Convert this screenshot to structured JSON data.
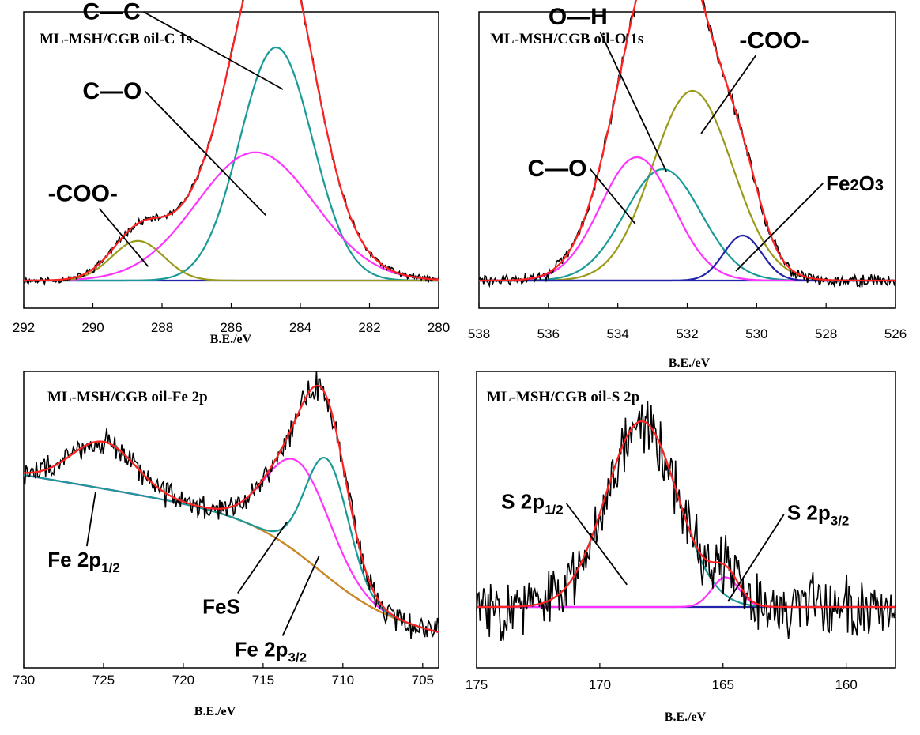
{
  "chart_data": [
    {
      "type": "line",
      "title": "ML-MSH/CGB oil-C 1s",
      "xlabel": "B.E./eV",
      "xlim": [
        292,
        280
      ],
      "xticks": [
        292,
        290,
        288,
        286,
        284,
        282,
        280
      ],
      "series": [
        {
          "name": "C—C",
          "color": "#1a9a96",
          "peak": 284.7,
          "height": 1.0,
          "width": 1.05
        },
        {
          "name": "C—O",
          "color": "#ff33ff",
          "peak": 285.3,
          "height": 0.55,
          "width": 1.7
        },
        {
          "name": "-COO-",
          "color": "#9a9a1a",
          "peak": 288.7,
          "height": 0.17,
          "width": 0.75
        },
        {
          "name": "fit",
          "color": "#ff2222"
        },
        {
          "name": "raw",
          "color": "#000000"
        }
      ],
      "annotations": [
        {
          "text": "C—C",
          "label_x": 290.3,
          "label_y": 1.12,
          "target_x": 284.5,
          "target_y": 0.82
        },
        {
          "text": "C—O",
          "label_x": 290.3,
          "label_y": 0.78,
          "target_x": 285.0,
          "target_y": 0.28
        },
        {
          "text": "-COO-",
          "label_x": 291.3,
          "label_y": 0.34,
          "target_x": 288.4,
          "target_y": 0.06
        }
      ]
    },
    {
      "type": "line",
      "title": "ML-MSH/CGB oil-O 1s",
      "xlabel": "B.E./eV",
      "xlim": [
        538,
        526
      ],
      "xticks": [
        538,
        536,
        534,
        532,
        530,
        528,
        526
      ],
      "series": [
        {
          "name": "-COO-",
          "color": "#9a9a1a",
          "peak": 531.85,
          "height": 0.8,
          "width": 1.15
        },
        {
          "name": "O—H",
          "color": "#1a9a96",
          "peak": 532.7,
          "height": 0.47,
          "width": 1.1
        },
        {
          "name": "C—O",
          "color": "#ff33ff",
          "peak": 533.45,
          "height": 0.52,
          "width": 1.05
        },
        {
          "name": "Fe2O3",
          "color": "#2222aa",
          "peak": 530.4,
          "height": 0.19,
          "width": 0.55
        },
        {
          "name": "fit",
          "color": "#ff2222"
        },
        {
          "name": "raw",
          "color": "#000000"
        }
      ],
      "annotations": [
        {
          "text": "O—H",
          "label_x": 536.0,
          "label_y": 1.08,
          "target_x": 532.6,
          "target_y": 0.46
        },
        {
          "text": "-COO-",
          "label_x": 530.5,
          "label_y": 0.98,
          "target_x": 531.6,
          "target_y": 0.62
        },
        {
          "text": "C—O",
          "label_x": 536.6,
          "label_y": 0.44,
          "target_x": 533.5,
          "target_y": 0.24
        },
        {
          "text": "Fe2O3",
          "label_x": 528.0,
          "label_y": 0.38,
          "target_x": 530.6,
          "target_y": 0.04
        }
      ]
    },
    {
      "type": "line",
      "title": "ML-MSH/CGB oil-Fe 2p",
      "xlabel": "B.E./eV",
      "xlim": [
        730,
        704
      ],
      "xticks": [
        730,
        725,
        720,
        715,
        710,
        705
      ],
      "series": [
        {
          "name": "Fe 2p1/2",
          "color": "#d28a1a",
          "peak": 725.0,
          "height": 0.22,
          "width": 2.0
        },
        {
          "name": "Fe 2p3/2",
          "color": "#ff33ff",
          "peak": 712.8,
          "height": 0.43,
          "width": 2.0
        },
        {
          "name": "FeS",
          "color": "#1a9a96",
          "peak": 711.0,
          "height": 0.55,
          "width": 1.35
        },
        {
          "name": "background",
          "color": "#2222aa"
        },
        {
          "name": "fit",
          "color": "#ff2222"
        },
        {
          "name": "raw",
          "color": "#000000"
        }
      ],
      "annotations": [
        {
          "text": "Fe 2p",
          "sub": "1/2",
          "label_x": 728.5,
          "label_y": 0.27,
          "target_x": 725.5,
          "target_y": 0.62
        },
        {
          "text": "FeS",
          "label_x": 718.8,
          "label_y": 0.05,
          "target_x": 713.5,
          "target_y": 0.48
        },
        {
          "text": "Fe 2p",
          "sub": "3/2",
          "label_x": 716.8,
          "label_y": -0.15,
          "target_x": 711.5,
          "target_y": 0.32
        }
      ]
    },
    {
      "type": "line",
      "title": "ML-MSH/CGB oil-S 2p",
      "xlabel": "B.E./eV",
      "xlim": [
        175,
        158
      ],
      "xticks": [
        175,
        170,
        165,
        160
      ],
      "series": [
        {
          "name": "S 2p1/2",
          "color": "#1a9a96",
          "peak": 168.3,
          "height": 1.0,
          "width": 1.45
        },
        {
          "name": "S 2p3/2",
          "color": "#ff33ff",
          "peak": 164.9,
          "height": 0.16,
          "width": 0.55
        },
        {
          "name": "fit",
          "color": "#ff2222"
        },
        {
          "name": "raw",
          "color": "#000000"
        }
      ],
      "annotations": [
        {
          "text": "S 2p",
          "sub": "1/2",
          "label_x": 174.0,
          "label_y": 0.53,
          "target_x": 168.9,
          "target_y": 0.12
        },
        {
          "text": "S 2p",
          "sub": "3/2",
          "label_x": 162.4,
          "label_y": 0.47,
          "target_x": 164.8,
          "target_y": 0.03
        }
      ]
    }
  ]
}
